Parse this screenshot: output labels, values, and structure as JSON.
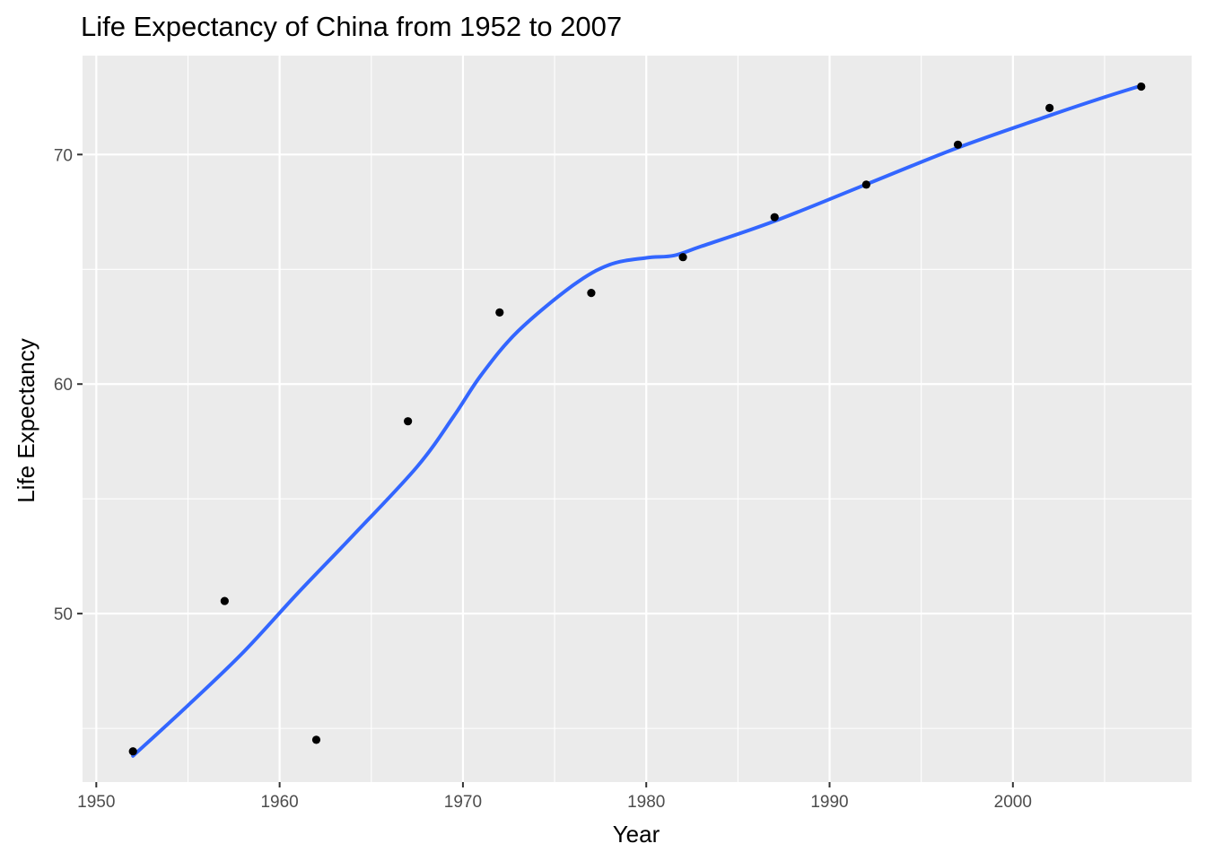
{
  "chart_data": {
    "type": "scatter",
    "title": "Life Expectancy of China from 1952 to 2007",
    "xlabel": "Year",
    "ylabel": "Life Expectancy",
    "xlim": [
      1949.25,
      2009.75
    ],
    "ylim": [
      42.66,
      74.31
    ],
    "x_ticks": [
      1950,
      1960,
      1970,
      1980,
      1990,
      2000
    ],
    "y_ticks": [
      50,
      60,
      70
    ],
    "grid": true,
    "legend": "none",
    "points": {
      "name": "",
      "color": "#000000",
      "x": [
        1952,
        1957,
        1962,
        1967,
        1972,
        1977,
        1982,
        1987,
        1992,
        1997,
        2002,
        2007
      ],
      "y": [
        44.0,
        50.55,
        44.5,
        58.38,
        63.12,
        63.97,
        65.53,
        67.27,
        68.69,
        70.43,
        72.03,
        72.96
      ]
    },
    "smooth": {
      "name": "",
      "color": "#3366FF",
      "x": [
        1952,
        1955,
        1958,
        1961,
        1964,
        1967.5,
        1969.5,
        1971,
        1973,
        1976,
        1978,
        1980,
        1981.5,
        1983,
        1987,
        1992,
        1997,
        2002,
        2005,
        2007
      ],
      "y": [
        43.8,
        46.0,
        48.3,
        50.9,
        53.4,
        56.4,
        58.6,
        60.4,
        62.3,
        64.3,
        65.2,
        65.5,
        65.6,
        66.0,
        67.1,
        68.7,
        70.3,
        71.7,
        72.5,
        73.0
      ]
    }
  }
}
